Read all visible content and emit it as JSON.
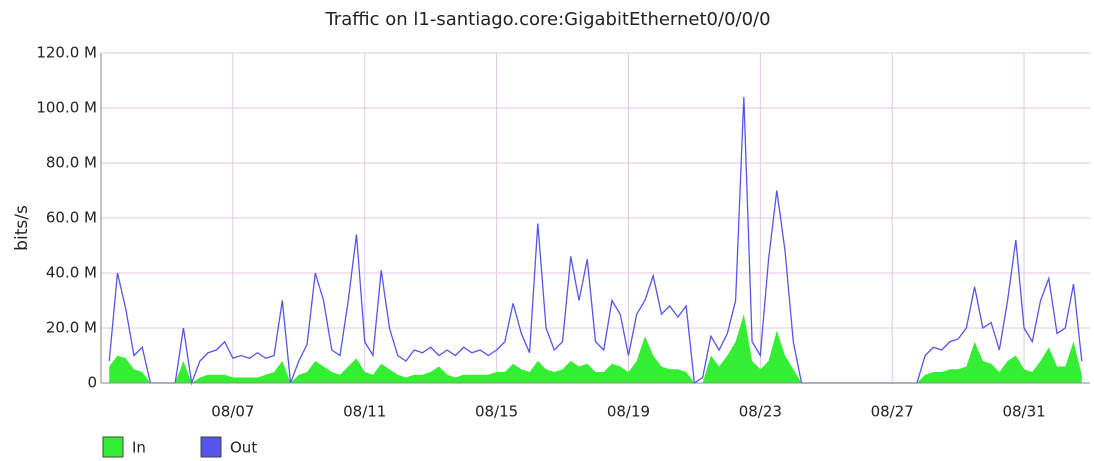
{
  "chart_data": {
    "type": "line",
    "title": "Traffic on l1-santiago.core:GigabitEthernet0/0/0/0",
    "y_label": "bits/s",
    "x": [
      3.25,
      3.5,
      3.75,
      4,
      4.25,
      4.5,
      4.75,
      5,
      5.25,
      5.5,
      5.75,
      6,
      6.25,
      6.5,
      6.75,
      7,
      7.25,
      7.5,
      7.75,
      8,
      8.25,
      8.5,
      8.75,
      9,
      9.25,
      9.5,
      9.75,
      10,
      10.25,
      10.5,
      10.75,
      11,
      11.25,
      11.5,
      11.75,
      12,
      12.25,
      12.5,
      12.75,
      13,
      13.25,
      13.5,
      13.75,
      14,
      14.25,
      14.5,
      14.75,
      15,
      15.25,
      15.5,
      15.75,
      16,
      16.25,
      16.5,
      16.75,
      17,
      17.25,
      17.5,
      17.75,
      18,
      18.25,
      18.5,
      18.75,
      19,
      19.25,
      19.5,
      19.75,
      20,
      20.25,
      20.5,
      20.75,
      21,
      21.25,
      21.5,
      21.75,
      22,
      22.25,
      22.5,
      22.75,
      23,
      23.25,
      23.5,
      23.75,
      24,
      24.25,
      24.5,
      24.75,
      25,
      25.25,
      25.5,
      25.75,
      26,
      26.25,
      26.5,
      26.75,
      27,
      27.25,
      27.5,
      27.75,
      28,
      28.25,
      28.5,
      28.75,
      29,
      29.25,
      29.5,
      29.75,
      30,
      30.25,
      30.5,
      30.75,
      31,
      31.25,
      31.5,
      31.75,
      32,
      32.25,
      32.5,
      32.75
    ],
    "series": [
      {
        "name": "In",
        "color": "#33ee33",
        "fill": true,
        "values": [
          6000000.0,
          10000000.0,
          9000000.0,
          5000000.0,
          4000000.0,
          0,
          0,
          0,
          0,
          8000000.0,
          0,
          2000000.0,
          3000000.0,
          3000000.0,
          3000000.0,
          2000000.0,
          2000000.0,
          2000000.0,
          2000000.0,
          3000000.0,
          4000000.0,
          8000000.0,
          0,
          3000000.0,
          4000000.0,
          8000000.0,
          6000000.0,
          4000000.0,
          3000000.0,
          6000000.0,
          9000000.0,
          4000000.0,
          3000000.0,
          7000000.0,
          5000000.0,
          3000000.0,
          2000000.0,
          3000000.0,
          3000000.0,
          4000000.0,
          6000000.0,
          3000000.0,
          2000000.0,
          3000000.0,
          3000000.0,
          3000000.0,
          3000000.0,
          4000000.0,
          4000000.0,
          7000000.0,
          5000000.0,
          4000000.0,
          8000000.0,
          5000000.0,
          4000000.0,
          5000000.0,
          8000000.0,
          6000000.0,
          7000000.0,
          4000000.0,
          4000000.0,
          7000000.0,
          6000000.0,
          4000000.0,
          8000000.0,
          17000000.0,
          10000000.0,
          6000000.0,
          5000000.0,
          5000000.0,
          4000000.0,
          0,
          0,
          10000000.0,
          6000000.0,
          10000000.0,
          15000000.0,
          25000000.0,
          8000000.0,
          5000000.0,
          8000000.0,
          19000000.0,
          10000000.0,
          5000000.0,
          0,
          0,
          0,
          0,
          0,
          0,
          0,
          0,
          0,
          0,
          0,
          0,
          0,
          0,
          0,
          3000000.0,
          4000000.0,
          4000000.0,
          5000000.0,
          5000000.0,
          6000000.0,
          15000000.0,
          8000000.0,
          7000000.0,
          4000000.0,
          8000000.0,
          10000000.0,
          5000000.0,
          4000000.0,
          8000000.0,
          13000000.0,
          6000000.0,
          6000000.0,
          15000000.0,
          3000000.0
        ]
      },
      {
        "name": "Out",
        "color": "#5555ee",
        "fill": false,
        "values": [
          8000000.0,
          40000000.0,
          27000000.0,
          10000000.0,
          13000000.0,
          0,
          0,
          0,
          0,
          20000000.0,
          0,
          8000000.0,
          11000000.0,
          12000000.0,
          15000000.0,
          9000000.0,
          10000000.0,
          9000000.0,
          11000000.0,
          9000000.0,
          10000000.0,
          30000000.0,
          0,
          8000000.0,
          14000000.0,
          40000000.0,
          30000000.0,
          12000000.0,
          10000000.0,
          30000000.0,
          54000000.0,
          15000000.0,
          10000000.0,
          41000000.0,
          20000000.0,
          10000000.0,
          8000000.0,
          12000000.0,
          11000000.0,
          13000000.0,
          10000000.0,
          12000000.0,
          10000000.0,
          13000000.0,
          11000000.0,
          12000000.0,
          10000000.0,
          12000000.0,
          15000000.0,
          29000000.0,
          18000000.0,
          11000000.0,
          58000000.0,
          20000000.0,
          12000000.0,
          15000000.0,
          46000000.0,
          30000000.0,
          45000000.0,
          15000000.0,
          12000000.0,
          30000000.0,
          25000000.0,
          10000000.0,
          25000000.0,
          30000000.0,
          39000000.0,
          25000000.0,
          28000000.0,
          24000000.0,
          28000000.0,
          0,
          2000000.0,
          17000000.0,
          12000000.0,
          18000000.0,
          30000000.0,
          104000000.0,
          15000000.0,
          10000000.0,
          45000000.0,
          70000000.0,
          48000000.0,
          15000000.0,
          0,
          0,
          0,
          0,
          0,
          0,
          0,
          0,
          0,
          0,
          0,
          0,
          0,
          0,
          0,
          10000000.0,
          13000000.0,
          12000000.0,
          15000000.0,
          16000000.0,
          20000000.0,
          35000000.0,
          20000000.0,
          22000000.0,
          12000000.0,
          30000000.0,
          52000000.0,
          20000000.0,
          15000000.0,
          30000000.0,
          38000000.0,
          18000000.0,
          20000000.0,
          36000000.0,
          8000000.0
        ]
      }
    ],
    "xlim": [
      3,
      33
    ],
    "xticks": [
      {
        "value": 7,
        "label": "08/07"
      },
      {
        "value": 11,
        "label": "08/11"
      },
      {
        "value": 15,
        "label": "08/15"
      },
      {
        "value": 19,
        "label": "08/19"
      },
      {
        "value": 23,
        "label": "08/23"
      },
      {
        "value": 27,
        "label": "08/27"
      },
      {
        "value": 31,
        "label": "08/31"
      }
    ],
    "ylim": [
      0,
      120000000
    ],
    "yticks": [
      0,
      {
        "value": 20000000,
        "label": "20.0 M"
      },
      {
        "value": 40000000,
        "label": "40.0 M"
      },
      {
        "value": 60000000,
        "label": "60.0 M"
      },
      {
        "value": 80000000,
        "label": "80.0 M"
      },
      {
        "value": 100000000,
        "label": "100.0 M"
      },
      {
        "value": 120000000,
        "label": "120.0 M"
      }
    ],
    "grid": true
  }
}
